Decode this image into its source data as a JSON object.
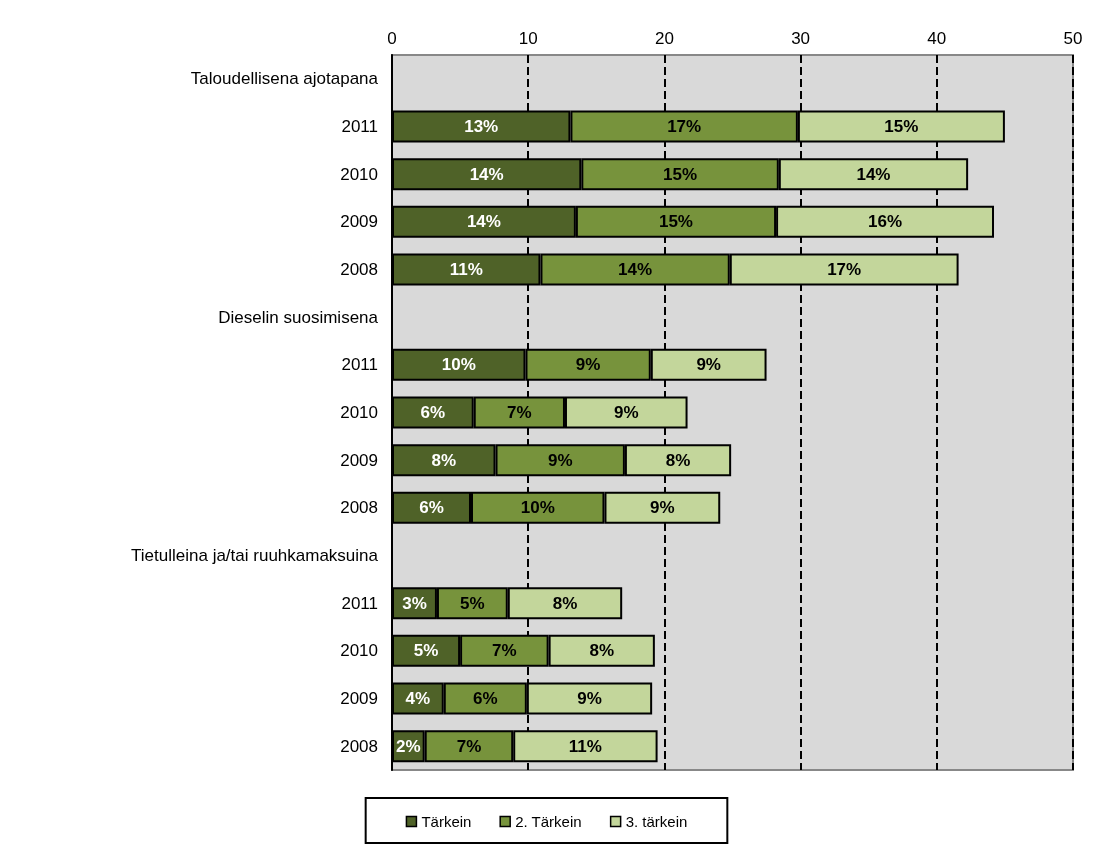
{
  "chart_data": {
    "type": "bar",
    "orientation": "horizontal",
    "stacked": true,
    "categories": [
      "Taloudellisena ajotapana",
      "2011",
      "2010",
      "2009",
      "2008",
      "Dieselin suosimisena",
      "2011",
      "2010",
      "2009",
      "2008",
      "Tietulleina ja/tai ruuhkamaksuina",
      "2011",
      "2010",
      "2009",
      "2008"
    ],
    "series": [
      {
        "name": "Tärkein",
        "color": "#4f6228",
        "values": [
          null,
          13.1,
          13.9,
          13.5,
          10.9,
          null,
          9.8,
          6.0,
          7.6,
          5.8,
          null,
          3.3,
          5.0,
          3.8,
          2.4
        ],
        "value_labels": [
          null,
          "13%",
          "14%",
          "14%",
          "11%",
          null,
          "10%",
          "6%",
          "8%",
          "6%",
          null,
          "3%",
          "5%",
          "4%",
          "2%"
        ]
      },
      {
        "name": "2. Tärkein",
        "color": "#77933c",
        "values": [
          null,
          16.7,
          14.5,
          14.7,
          13.9,
          null,
          9.2,
          6.7,
          9.5,
          9.8,
          null,
          5.2,
          6.5,
          6.1,
          6.5
        ],
        "value_labels": [
          null,
          "17%",
          "15%",
          "15%",
          "14%",
          null,
          "9%",
          "7%",
          "9%",
          "10%",
          null,
          "5%",
          "7%",
          "6%",
          "7%"
        ]
      },
      {
        "name": "3. tärkein",
        "color": "#c3d69b",
        "values": [
          null,
          15.2,
          13.9,
          16.0,
          16.8,
          null,
          8.5,
          9.0,
          7.8,
          8.5,
          null,
          8.4,
          7.8,
          9.2,
          10.6
        ],
        "value_labels": [
          null,
          "15%",
          "14%",
          "16%",
          "17%",
          null,
          "9%",
          "9%",
          "8%",
          "9%",
          null,
          "8%",
          "8%",
          "9%",
          "11%"
        ]
      }
    ],
    "xlim": [
      0,
      50
    ],
    "xticks": [
      0,
      10,
      20,
      30,
      40,
      50
    ],
    "grid": "x",
    "legend": "bottom"
  }
}
